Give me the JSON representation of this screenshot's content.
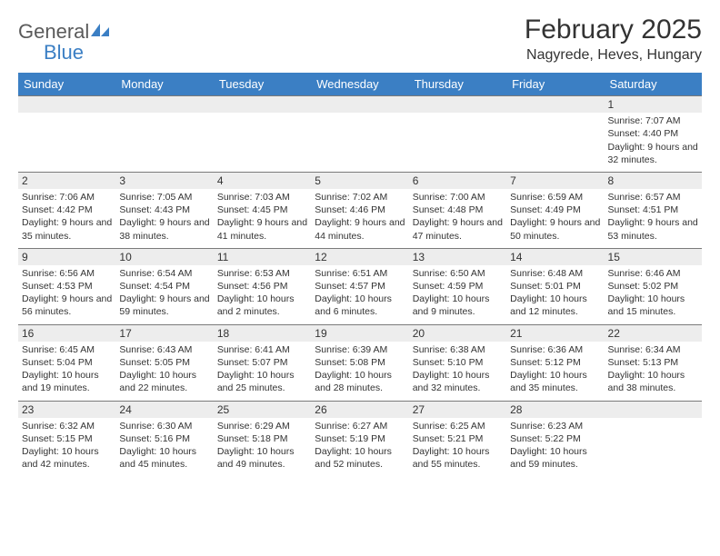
{
  "logo": {
    "word1": "General",
    "word2": "Blue",
    "shape_color": "#3b7fc4",
    "text_color": "#5a5a5a"
  },
  "header": {
    "title": "February 2025",
    "location": "Nagyrede, Heves, Hungary"
  },
  "styling": {
    "header_bg": "#3b7fc4",
    "header_fg": "#ffffff",
    "daynum_bg": "#ededed",
    "border_color": "#7a7a7a",
    "text_color": "#333333",
    "body_font_size": 10.5,
    "title_font_size": 30,
    "location_font_size": 16,
    "dayheader_font_size": 13
  },
  "day_names": [
    "Sunday",
    "Monday",
    "Tuesday",
    "Wednesday",
    "Thursday",
    "Friday",
    "Saturday"
  ],
  "weeks": [
    [
      null,
      null,
      null,
      null,
      null,
      null,
      {
        "num": "1",
        "sunrise": "7:07 AM",
        "sunset": "4:40 PM",
        "daylight": "9 hours and 32 minutes."
      }
    ],
    [
      {
        "num": "2",
        "sunrise": "7:06 AM",
        "sunset": "4:42 PM",
        "daylight": "9 hours and 35 minutes."
      },
      {
        "num": "3",
        "sunrise": "7:05 AM",
        "sunset": "4:43 PM",
        "daylight": "9 hours and 38 minutes."
      },
      {
        "num": "4",
        "sunrise": "7:03 AM",
        "sunset": "4:45 PM",
        "daylight": "9 hours and 41 minutes."
      },
      {
        "num": "5",
        "sunrise": "7:02 AM",
        "sunset": "4:46 PM",
        "daylight": "9 hours and 44 minutes."
      },
      {
        "num": "6",
        "sunrise": "7:00 AM",
        "sunset": "4:48 PM",
        "daylight": "9 hours and 47 minutes."
      },
      {
        "num": "7",
        "sunrise": "6:59 AM",
        "sunset": "4:49 PM",
        "daylight": "9 hours and 50 minutes."
      },
      {
        "num": "8",
        "sunrise": "6:57 AM",
        "sunset": "4:51 PM",
        "daylight": "9 hours and 53 minutes."
      }
    ],
    [
      {
        "num": "9",
        "sunrise": "6:56 AM",
        "sunset": "4:53 PM",
        "daylight": "9 hours and 56 minutes."
      },
      {
        "num": "10",
        "sunrise": "6:54 AM",
        "sunset": "4:54 PM",
        "daylight": "9 hours and 59 minutes."
      },
      {
        "num": "11",
        "sunrise": "6:53 AM",
        "sunset": "4:56 PM",
        "daylight": "10 hours and 2 minutes."
      },
      {
        "num": "12",
        "sunrise": "6:51 AM",
        "sunset": "4:57 PM",
        "daylight": "10 hours and 6 minutes."
      },
      {
        "num": "13",
        "sunrise": "6:50 AM",
        "sunset": "4:59 PM",
        "daylight": "10 hours and 9 minutes."
      },
      {
        "num": "14",
        "sunrise": "6:48 AM",
        "sunset": "5:01 PM",
        "daylight": "10 hours and 12 minutes."
      },
      {
        "num": "15",
        "sunrise": "6:46 AM",
        "sunset": "5:02 PM",
        "daylight": "10 hours and 15 minutes."
      }
    ],
    [
      {
        "num": "16",
        "sunrise": "6:45 AM",
        "sunset": "5:04 PM",
        "daylight": "10 hours and 19 minutes."
      },
      {
        "num": "17",
        "sunrise": "6:43 AM",
        "sunset": "5:05 PM",
        "daylight": "10 hours and 22 minutes."
      },
      {
        "num": "18",
        "sunrise": "6:41 AM",
        "sunset": "5:07 PM",
        "daylight": "10 hours and 25 minutes."
      },
      {
        "num": "19",
        "sunrise": "6:39 AM",
        "sunset": "5:08 PM",
        "daylight": "10 hours and 28 minutes."
      },
      {
        "num": "20",
        "sunrise": "6:38 AM",
        "sunset": "5:10 PM",
        "daylight": "10 hours and 32 minutes."
      },
      {
        "num": "21",
        "sunrise": "6:36 AM",
        "sunset": "5:12 PM",
        "daylight": "10 hours and 35 minutes."
      },
      {
        "num": "22",
        "sunrise": "6:34 AM",
        "sunset": "5:13 PM",
        "daylight": "10 hours and 38 minutes."
      }
    ],
    [
      {
        "num": "23",
        "sunrise": "6:32 AM",
        "sunset": "5:15 PM",
        "daylight": "10 hours and 42 minutes."
      },
      {
        "num": "24",
        "sunrise": "6:30 AM",
        "sunset": "5:16 PM",
        "daylight": "10 hours and 45 minutes."
      },
      {
        "num": "25",
        "sunrise": "6:29 AM",
        "sunset": "5:18 PM",
        "daylight": "10 hours and 49 minutes."
      },
      {
        "num": "26",
        "sunrise": "6:27 AM",
        "sunset": "5:19 PM",
        "daylight": "10 hours and 52 minutes."
      },
      {
        "num": "27",
        "sunrise": "6:25 AM",
        "sunset": "5:21 PM",
        "daylight": "10 hours and 55 minutes."
      },
      {
        "num": "28",
        "sunrise": "6:23 AM",
        "sunset": "5:22 PM",
        "daylight": "10 hours and 59 minutes."
      },
      null
    ]
  ],
  "labels": {
    "sunrise": "Sunrise:",
    "sunset": "Sunset:",
    "daylight": "Daylight:"
  }
}
